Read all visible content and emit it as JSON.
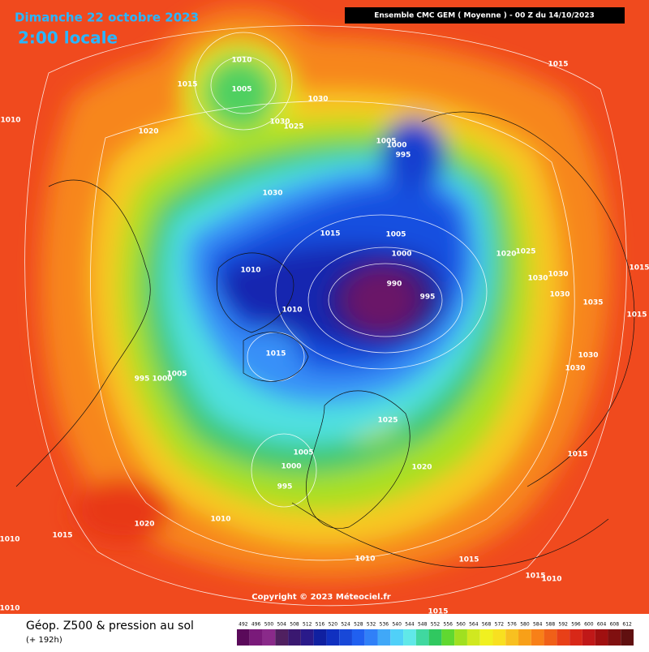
{
  "header": {
    "date": "Dimanche 22 octobre 2023",
    "time": "2:00 locale",
    "run": "Ensemble CMC GEM  ( Moyenne )  - 00 Z du 14/10/2023"
  },
  "footer": {
    "copyright": "Copyright © 2023 Méteociel.fr",
    "field": "Géop. Z500 & pression au sol",
    "lead": "(+ 192h)"
  },
  "scale": {
    "values": [
      492,
      496,
      500,
      504,
      508,
      512,
      516,
      520,
      524,
      528,
      532,
      536,
      540,
      544,
      548,
      552,
      556,
      560,
      564,
      568,
      572,
      576,
      580,
      584,
      588,
      592,
      596,
      600,
      604,
      608,
      612
    ],
    "colors": [
      "#5a0a5a",
      "#7a1a7a",
      "#8a2a8a",
      "#502060",
      "#3a1870",
      "#2a1a8a",
      "#1020a0",
      "#1030c0",
      "#1848d8",
      "#2060f0",
      "#3080f8",
      "#40a8f8",
      "#50d0f8",
      "#60e8e8",
      "#40d8a0",
      "#30c860",
      "#60d830",
      "#a0e020",
      "#d0e820",
      "#f0f020",
      "#f8e020",
      "#f8c020",
      "#f8a018",
      "#f88018",
      "#f06018",
      "#e84018",
      "#d82818",
      "#c01818",
      "#a01010",
      "#801010",
      "#601010"
    ]
  },
  "isobars": [
    1010,
    1005,
    1015,
    1030,
    1020,
    1030,
    1025,
    1010,
    1015,
    1005,
    1000,
    995,
    1030,
    1015,
    1005,
    1000,
    1020,
    1025,
    1010,
    990,
    995,
    1030,
    1030,
    1030,
    1035,
    1015,
    1010,
    1015,
    1030,
    1030,
    995,
    1000,
    1005,
    1025,
    1005,
    1000,
    995,
    1020,
    1015,
    1010,
    1020,
    1015,
    1010,
    1010,
    1015,
    1015,
    1010,
    1015,
    1010,
    1015
  ]
}
